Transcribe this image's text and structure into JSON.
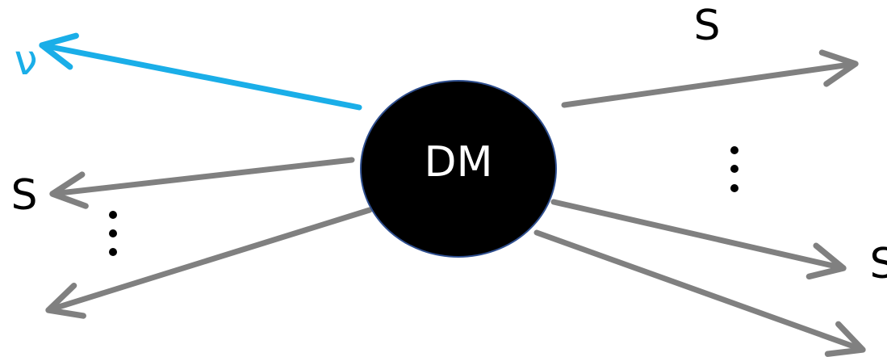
{
  "center": {
    "label": "DM"
  },
  "particles": [
    {
      "label": "ν"
    },
    {
      "label": "S"
    },
    {
      "label": "S"
    },
    {
      "label": "S"
    }
  ]
}
